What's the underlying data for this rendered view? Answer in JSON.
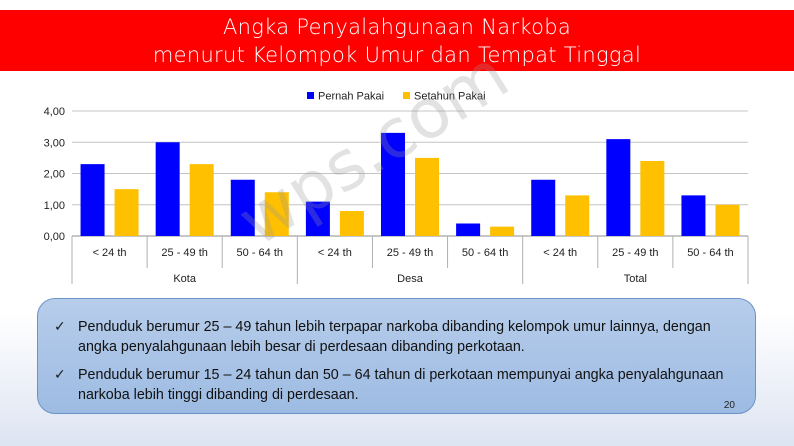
{
  "slide": {
    "title_line1": "Angka Penyalahgunaan Narkoba",
    "title_line2": "menurut Kelompok Umur dan Tempat Tinggal",
    "watermark": "wps.com",
    "page_number": "20"
  },
  "colors": {
    "title_bar": "#ff0000",
    "series_pernah": "#0000ff",
    "series_setahun": "#ffc000"
  },
  "chart_data": {
    "type": "bar",
    "categories": [
      "< 24 th",
      "25 - 49 th",
      "50 - 64 th",
      "< 24 th",
      "25 - 49 th",
      "50 - 64 th",
      "< 24 th",
      "25 - 49 th",
      "50 - 64 th"
    ],
    "groups": [
      {
        "label": "Kota",
        "start": 0,
        "count": 3
      },
      {
        "label": "Desa",
        "start": 3,
        "count": 3
      },
      {
        "label": "Total",
        "start": 6,
        "count": 3
      }
    ],
    "series": [
      {
        "name": "Pernah Pakai",
        "values": [
          2.3,
          3.0,
          1.8,
          1.1,
          3.3,
          0.4,
          1.8,
          3.1,
          1.3
        ]
      },
      {
        "name": "Setahun Pakai",
        "values": [
          1.5,
          2.3,
          1.4,
          0.8,
          2.5,
          0.3,
          1.3,
          2.4,
          1.0
        ]
      }
    ],
    "ylim": [
      0,
      4
    ],
    "yticks": [
      "0,00",
      "1,00",
      "2,00",
      "3,00",
      "4,00"
    ],
    "grid": true,
    "legend_position": "top-center"
  },
  "notes": [
    {
      "text": "Penduduk berumur 25 – 49 tahun lebih terpapar narkoba dibanding kelompok umur lainnya, dengan angka penyalahgunaan lebih besar di perdesaan dibanding perkotaan."
    },
    {
      "text": " Penduduk berumur 15 – 24 tahun  dan 50 – 64 tahun di perkotaan mempunyai angka penyalahgunaan narkoba lebih tinggi dibanding di perdesaan."
    }
  ]
}
